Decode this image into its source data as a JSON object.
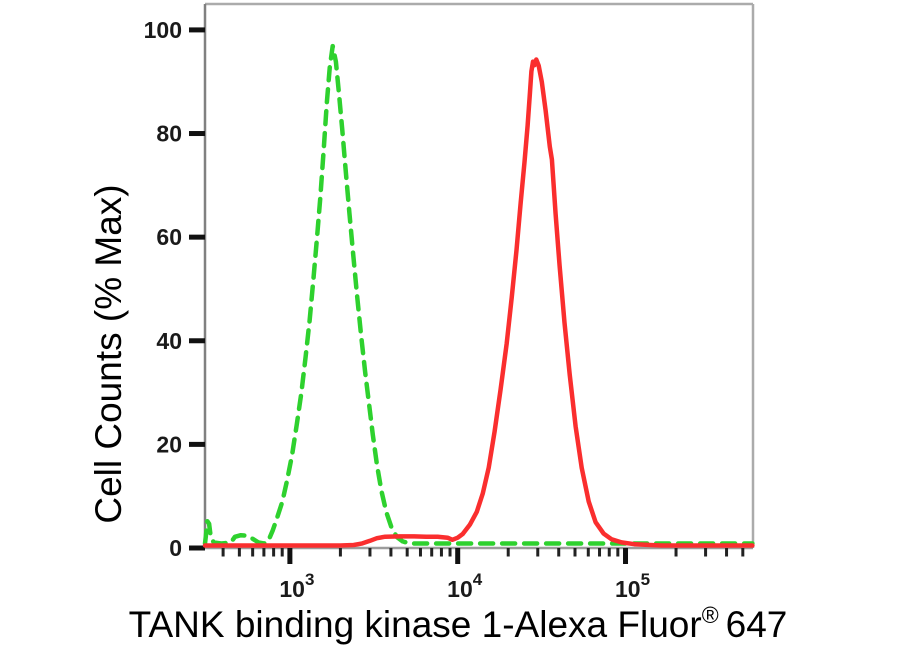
{
  "chart_data": {
    "type": "line",
    "title": "",
    "xlabel": "TANK binding kinase 1-Alexa Fluor® 647",
    "xlabel_parts": {
      "main": "TANK binding kinase 1-Alexa Fluor",
      "sup": "®",
      "suffix": "647"
    },
    "ylabel": "Cell Counts (% Max)",
    "grid": false,
    "legend": "none",
    "background_color": "#ffffff",
    "x_axis": {
      "scale": "log",
      "min": 312,
      "max": 575000,
      "major_ticks": [
        1000,
        10000,
        100000
      ],
      "major_tick_labels": [
        {
          "base": "10",
          "exp": "3"
        },
        {
          "base": "10",
          "exp": "4"
        },
        {
          "base": "10",
          "exp": "5"
        }
      ]
    },
    "y_axis": {
      "min": 0,
      "max": 105,
      "major_ticks": [
        0,
        20,
        40,
        60,
        80,
        100
      ],
      "minor_tick_step": 5
    },
    "series": [
      {
        "name": "green-dashed",
        "line_style": "dashed",
        "color": "#2ed12e",
        "points": [
          [
            312,
            0
          ],
          [
            316,
            1.5
          ],
          [
            322,
            4.3
          ],
          [
            330,
            3.8
          ],
          [
            338,
            1.2
          ],
          [
            352,
            0.2
          ],
          [
            390,
            0
          ],
          [
            445,
            0.2
          ],
          [
            470,
            1.3
          ],
          [
            510,
            1.6
          ],
          [
            555,
            1.5
          ],
          [
            600,
            0.9
          ],
          [
            650,
            0.2
          ],
          [
            700,
            0
          ],
          [
            740,
            0.3
          ],
          [
            790,
            2.5
          ],
          [
            830,
            4.5
          ],
          [
            900,
            8
          ],
          [
            960,
            12
          ],
          [
            1030,
            17
          ],
          [
            1100,
            23
          ],
          [
            1170,
            29
          ],
          [
            1240,
            36
          ],
          [
            1310,
            43
          ],
          [
            1380,
            51
          ],
          [
            1450,
            59
          ],
          [
            1520,
            67
          ],
          [
            1590,
            76
          ],
          [
            1660,
            85
          ],
          [
            1730,
            92
          ],
          [
            1800,
            96
          ],
          [
            1880,
            93
          ],
          [
            1960,
            87
          ],
          [
            2050,
            80
          ],
          [
            2150,
            72
          ],
          [
            2260,
            64
          ],
          [
            2380,
            56
          ],
          [
            2510,
            48
          ],
          [
            2660,
            40
          ],
          [
            2810,
            33
          ],
          [
            2960,
            27
          ],
          [
            3120,
            21
          ],
          [
            3310,
            15
          ],
          [
            3520,
            10
          ],
          [
            3760,
            6
          ],
          [
            4060,
            2.8
          ],
          [
            4360,
            1.2
          ],
          [
            4700,
            0.4
          ],
          [
            5200,
            0
          ],
          [
            10000,
            0
          ],
          [
            30000,
            0
          ],
          [
            100000,
            0
          ],
          [
            300000,
            0
          ],
          [
            570000,
            0
          ]
        ]
      },
      {
        "name": "red-solid",
        "line_style": "solid",
        "color": "#fa2e2e",
        "points": [
          [
            312,
            0
          ],
          [
            1000,
            0
          ],
          [
            2000,
            0
          ],
          [
            2400,
            0.1
          ],
          [
            2700,
            0.4
          ],
          [
            3000,
            0.9
          ],
          [
            3300,
            1.4
          ],
          [
            3700,
            1.7
          ],
          [
            4500,
            1.75
          ],
          [
            5500,
            1.75
          ],
          [
            6500,
            1.7
          ],
          [
            7600,
            1.7
          ],
          [
            8700,
            1.5
          ],
          [
            9300,
            1.1
          ],
          [
            10000,
            1.5
          ],
          [
            10700,
            2.2
          ],
          [
            11800,
            4
          ],
          [
            13000,
            6.5
          ],
          [
            14100,
            10
          ],
          [
            15300,
            15
          ],
          [
            16600,
            22
          ],
          [
            18000,
            30
          ],
          [
            19600,
            39
          ],
          [
            21000,
            48
          ],
          [
            22400,
            57
          ],
          [
            23700,
            66
          ],
          [
            25000,
            74
          ],
          [
            26100,
            81
          ],
          [
            26900,
            87
          ],
          [
            27500,
            91.5
          ],
          [
            28100,
            93.4
          ],
          [
            28700,
            92.7
          ],
          [
            29400,
            93.8
          ],
          [
            30400,
            92.6
          ],
          [
            31700,
            89.5
          ],
          [
            33400,
            84
          ],
          [
            35400,
            77
          ],
          [
            36400,
            74.5
          ],
          [
            38300,
            64
          ],
          [
            40500,
            54
          ],
          [
            43300,
            43
          ],
          [
            46500,
            33
          ],
          [
            50400,
            23
          ],
          [
            54800,
            15
          ],
          [
            60300,
            8.5
          ],
          [
            66300,
            4.5
          ],
          [
            74000,
            2.3
          ],
          [
            82600,
            1.2
          ],
          [
            94600,
            0.6
          ],
          [
            113000,
            0.25
          ],
          [
            140000,
            0.1
          ],
          [
            165000,
            0
          ],
          [
            300000,
            0
          ],
          [
            570000,
            0
          ]
        ]
      }
    ]
  }
}
